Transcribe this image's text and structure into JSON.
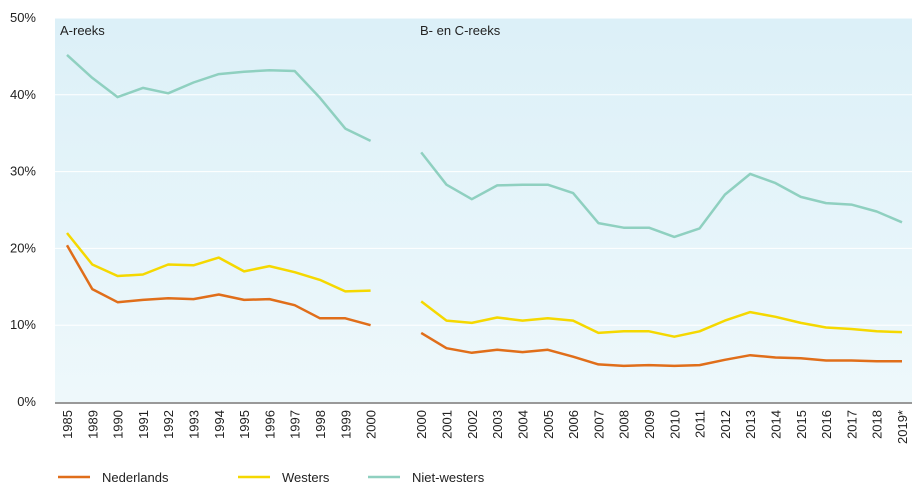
{
  "chart_data": {
    "type": "line",
    "annotations": [
      "A-reeks",
      "B- en C-reeks"
    ],
    "categories": [
      "1985",
      "1989",
      "1990",
      "1991",
      "1992",
      "1993",
      "1994",
      "1995",
      "1996",
      "1997",
      "1998",
      "1999",
      "2000",
      null,
      "2000",
      "2001",
      "2002",
      "2003",
      "2004",
      "2005",
      "2006",
      "2007",
      "2008",
      "2009",
      "2010",
      "2011",
      "2012",
      "2013",
      "2014",
      "2015",
      "2016",
      "2017",
      "2018",
      "2019*"
    ],
    "series": [
      {
        "name": "Nederlands",
        "color": "#e06e1a",
        "values": [
          20.4,
          14.7,
          13.0,
          13.3,
          13.5,
          13.4,
          14.0,
          13.3,
          13.4,
          12.6,
          10.9,
          10.9,
          10.0,
          null,
          9.0,
          7.0,
          6.4,
          6.8,
          6.5,
          6.8,
          5.9,
          4.9,
          4.7,
          4.8,
          4.7,
          4.8,
          5.5,
          6.1,
          5.8,
          5.7,
          5.4,
          5.4,
          5.3,
          5.3
        ]
      },
      {
        "name": "Westers",
        "color": "#f5d800",
        "values": [
          22.0,
          17.9,
          16.4,
          16.6,
          17.9,
          17.8,
          18.8,
          17.0,
          17.7,
          16.9,
          15.9,
          14.4,
          14.5,
          null,
          13.1,
          10.6,
          10.3,
          11.0,
          10.6,
          10.9,
          10.6,
          9.0,
          9.2,
          9.2,
          8.5,
          9.2,
          10.6,
          11.7,
          11.1,
          10.3,
          9.7,
          9.5,
          9.2,
          9.1
        ]
      },
      {
        "name": "Niet-westers",
        "color": "#8fd0c0",
        "values": [
          45.2,
          42.2,
          39.7,
          40.9,
          40.2,
          41.6,
          42.7,
          43.0,
          43.2,
          43.1,
          39.6,
          35.6,
          34.0,
          null,
          32.5,
          28.3,
          26.4,
          28.2,
          28.3,
          28.3,
          27.2,
          23.3,
          22.7,
          22.7,
          21.5,
          22.6,
          27.0,
          29.7,
          28.5,
          26.7,
          25.9,
          25.7,
          24.8,
          23.4
        ]
      }
    ],
    "ylim": [
      0,
      50
    ],
    "yticks": [
      {
        "value": 0,
        "label": "0%"
      },
      {
        "value": 10,
        "label": "10%"
      },
      {
        "value": 20,
        "label": "20%"
      },
      {
        "value": 30,
        "label": "30%"
      },
      {
        "value": 40,
        "label": "40%"
      },
      {
        "value": 50,
        "label": "50%"
      }
    ],
    "grid": true
  }
}
